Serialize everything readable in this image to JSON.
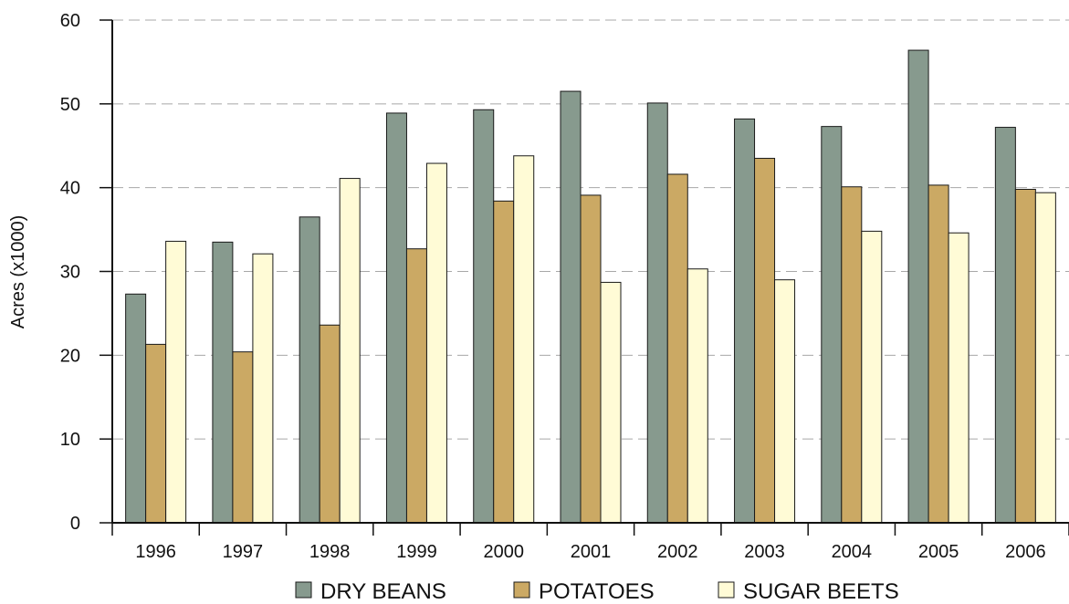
{
  "chart_data": {
    "type": "bar",
    "ylabel": "Acres (x1000)",
    "xlabel": "",
    "ylim": [
      0,
      60
    ],
    "yticks": [
      0,
      10,
      20,
      30,
      40,
      50,
      60
    ],
    "grid": "horizontal dashed",
    "legend_position": "bottom",
    "categories": [
      "1996",
      "1997",
      "1998",
      "1999",
      "2000",
      "2001",
      "2002",
      "2003",
      "2004",
      "2005",
      "2006"
    ],
    "series": [
      {
        "name": "DRY BEANS",
        "color": "#879a8e",
        "values": [
          27.3,
          33.5,
          36.5,
          48.9,
          49.3,
          51.5,
          50.1,
          48.2,
          47.3,
          56.4,
          47.2
        ]
      },
      {
        "name": "POTATOES",
        "color": "#cba964",
        "values": [
          21.3,
          20.4,
          23.6,
          32.7,
          38.4,
          39.1,
          41.6,
          43.5,
          40.1,
          40.3,
          39.8
        ]
      },
      {
        "name": "SUGAR BEETS",
        "color": "#fffbd6",
        "values": [
          33.6,
          32.1,
          41.1,
          42.9,
          43.8,
          28.7,
          30.3,
          29.0,
          34.8,
          34.6,
          39.4
        ]
      }
    ]
  }
}
